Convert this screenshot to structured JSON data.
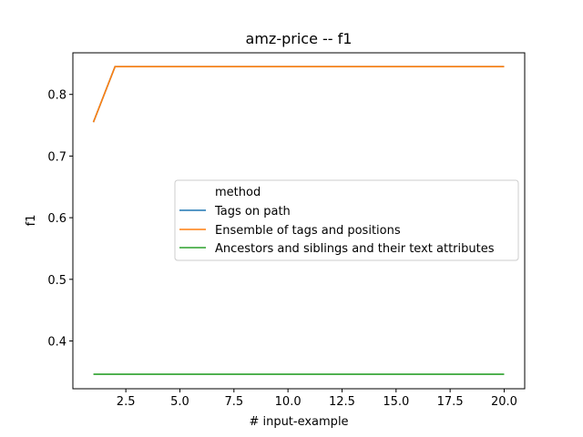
{
  "chart_data": {
    "type": "line",
    "title": "amz-price -- f1",
    "xlabel": "# input-example",
    "ylabel": "f1",
    "xlim": [
      0.05,
      20.95
    ],
    "ylim": [
      0.3225,
      0.8675
    ],
    "xticks": [
      2.5,
      5.0,
      7.5,
      10.0,
      12.5,
      15.0,
      17.5,
      20.0
    ],
    "xtick_labels": [
      "2.5",
      "5.0",
      "7.5",
      "10.0",
      "12.5",
      "15.0",
      "17.5",
      "20.0"
    ],
    "yticks": [
      0.4,
      0.5,
      0.6,
      0.7,
      0.8
    ],
    "ytick_labels": [
      "0.4",
      "0.5",
      "0.6",
      "0.7",
      "0.8"
    ],
    "grid": false,
    "legend": {
      "title": "method",
      "placement": "center-right"
    },
    "x": [
      1,
      2,
      3,
      4,
      5,
      6,
      7,
      8,
      9,
      10,
      11,
      12,
      13,
      14,
      15,
      16,
      17,
      18,
      19,
      20
    ],
    "series": [
      {
        "name": "Tags on path",
        "color": "#1f77b4",
        "values": [
          0.755,
          0.845,
          0.845,
          0.845,
          0.845,
          0.845,
          0.845,
          0.845,
          0.845,
          0.845,
          0.845,
          0.845,
          0.845,
          0.845,
          0.845,
          0.845,
          0.845,
          0.845,
          0.845,
          0.845
        ]
      },
      {
        "name": "Ensemble of tags and positions",
        "color": "#ff7f0e",
        "values": [
          0.755,
          0.845,
          0.845,
          0.845,
          0.845,
          0.845,
          0.845,
          0.845,
          0.845,
          0.845,
          0.845,
          0.845,
          0.845,
          0.845,
          0.845,
          0.845,
          0.845,
          0.845,
          0.845,
          0.845
        ]
      },
      {
        "name": "Ancestors and siblings and their text attributes",
        "color": "#2ca02c",
        "values": [
          0.346,
          0.346,
          0.346,
          0.346,
          0.346,
          0.346,
          0.346,
          0.346,
          0.346,
          0.346,
          0.346,
          0.346,
          0.346,
          0.346,
          0.346,
          0.346,
          0.346,
          0.346,
          0.346,
          0.346
        ]
      }
    ]
  }
}
